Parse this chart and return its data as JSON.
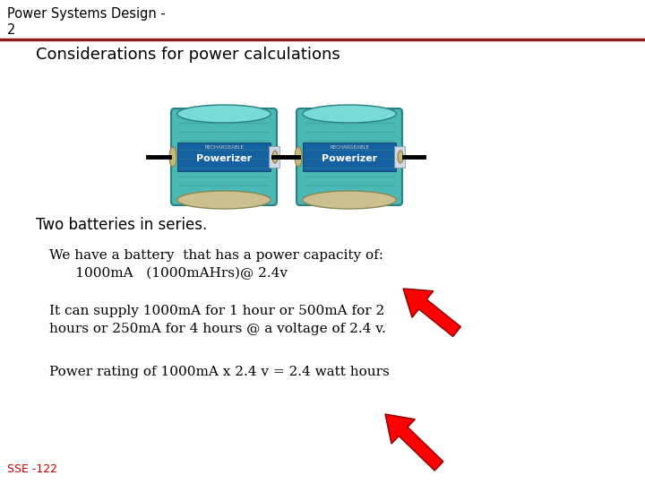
{
  "background_color": "#ffffff",
  "title_line1": "Power Systems Design -",
  "title_line2": "2",
  "title_fontsize": 10.5,
  "title_color": "#000000",
  "separator_color": "#8b1a1a",
  "heading": "Considerations for power calculations",
  "heading_fontsize": 13,
  "heading_color": "#000000",
  "subheading": "Two batteries in series.",
  "subheading_fontsize": 12,
  "subheading_color": "#000000",
  "body_text1_line1": "We have a battery  that has a power capacity of:",
  "body_text1_line2": "      1000mA   (1000mAHrs)@ 2.4v",
  "body_text2_line1": "It can supply 1000mA for 1 hour or 500mA for 2",
  "body_text2_line2": "hours or 250mA for 4 hours @ a voltage of 2.4 v.",
  "body_text3": "Power rating of 1000mA x 2.4 v = 2.4 watt hours",
  "body_fontsize": 11,
  "body_color": "#000000",
  "footer_text": "SSE -122",
  "footer_color": "#cc0000",
  "footer_fontsize": 9,
  "bat_teal_light": "#5bbcb8",
  "bat_teal_mid": "#3a9e9a",
  "bat_teal_dark": "#2a7a76",
  "bat_label_bg": "#1a6090",
  "bat_end_color": "#d4c490"
}
